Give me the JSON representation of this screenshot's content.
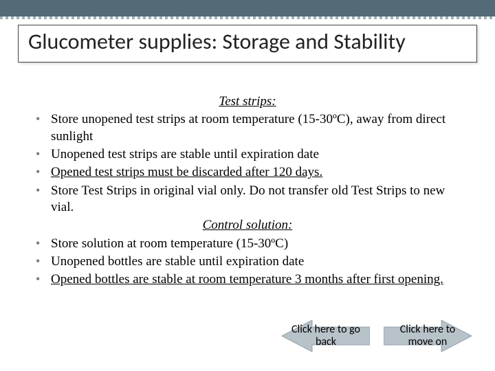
{
  "colors": {
    "stripe": "#546a76",
    "stripe_dots": "#9fb1bb",
    "bullet": "#6a7a84",
    "arrow_fill": "#8a9aa6",
    "arrow_stroke": "#556570",
    "text": "#000000",
    "title_text": "#222222",
    "background": "#ffffff"
  },
  "title": "Glucometer supplies: Storage and Stability",
  "section1": {
    "heading": "Test strips:",
    "items": [
      " Store unopened test strips at room temperature (15-30ºC), away from direct sunlight",
      "Unopened test strips are stable until expiration date",
      "Opened test strips must be discarded after 120 days.",
      "Store Test Strips in original vial only. Do not transfer old Test Strips to new vial."
    ],
    "underline_idx": 2
  },
  "section2": {
    "heading": "Control solution:",
    "items": [
      "Store solution at room temperature (15-30ºC)",
      "Unopened bottles are stable until expiration date",
      "Opened bottles are stable at room temperature 3 months after first opening."
    ],
    "underline_idx": 2
  },
  "nav": {
    "back": "Click here to go back",
    "next": "Click here to move on"
  }
}
